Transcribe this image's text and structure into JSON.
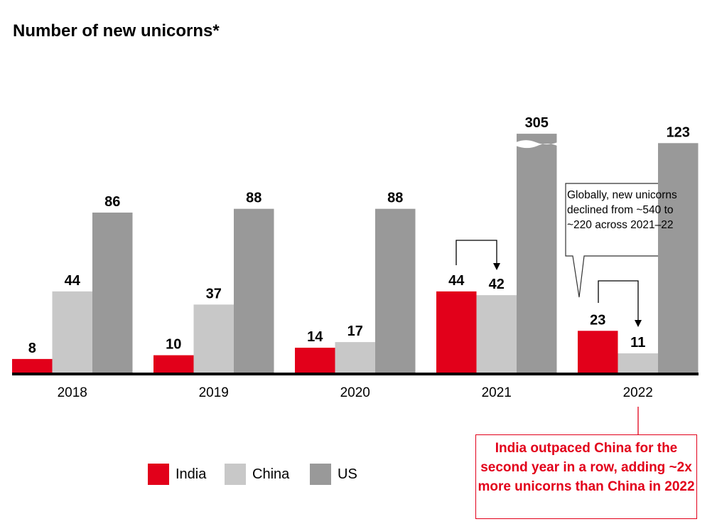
{
  "chart_data": {
    "type": "bar",
    "title": "Number of new unicorns*",
    "categories": [
      "2018",
      "2019",
      "2020",
      "2021",
      "2022"
    ],
    "series": [
      {
        "name": "India",
        "color": "#e2001a",
        "values": [
          8,
          10,
          14,
          44,
          23
        ]
      },
      {
        "name": "China",
        "color": "#c8c8c8",
        "values": [
          44,
          37,
          17,
          42,
          11
        ]
      },
      {
        "name": "US",
        "color": "#999999",
        "values": [
          86,
          88,
          88,
          305,
          123
        ]
      }
    ],
    "axis_break": {
      "series": "US",
      "category": "2021",
      "shown_to": 128
    },
    "ylim": [
      0,
      135
    ],
    "legend": "bottom-left",
    "annotations": {
      "global_note": "Globally, new unicorns declined from ~540 to ~220 across 2021–22",
      "highlight": "India outpaced China for the second year in a row, adding ~2x more unicorns than China in 2022"
    }
  }
}
